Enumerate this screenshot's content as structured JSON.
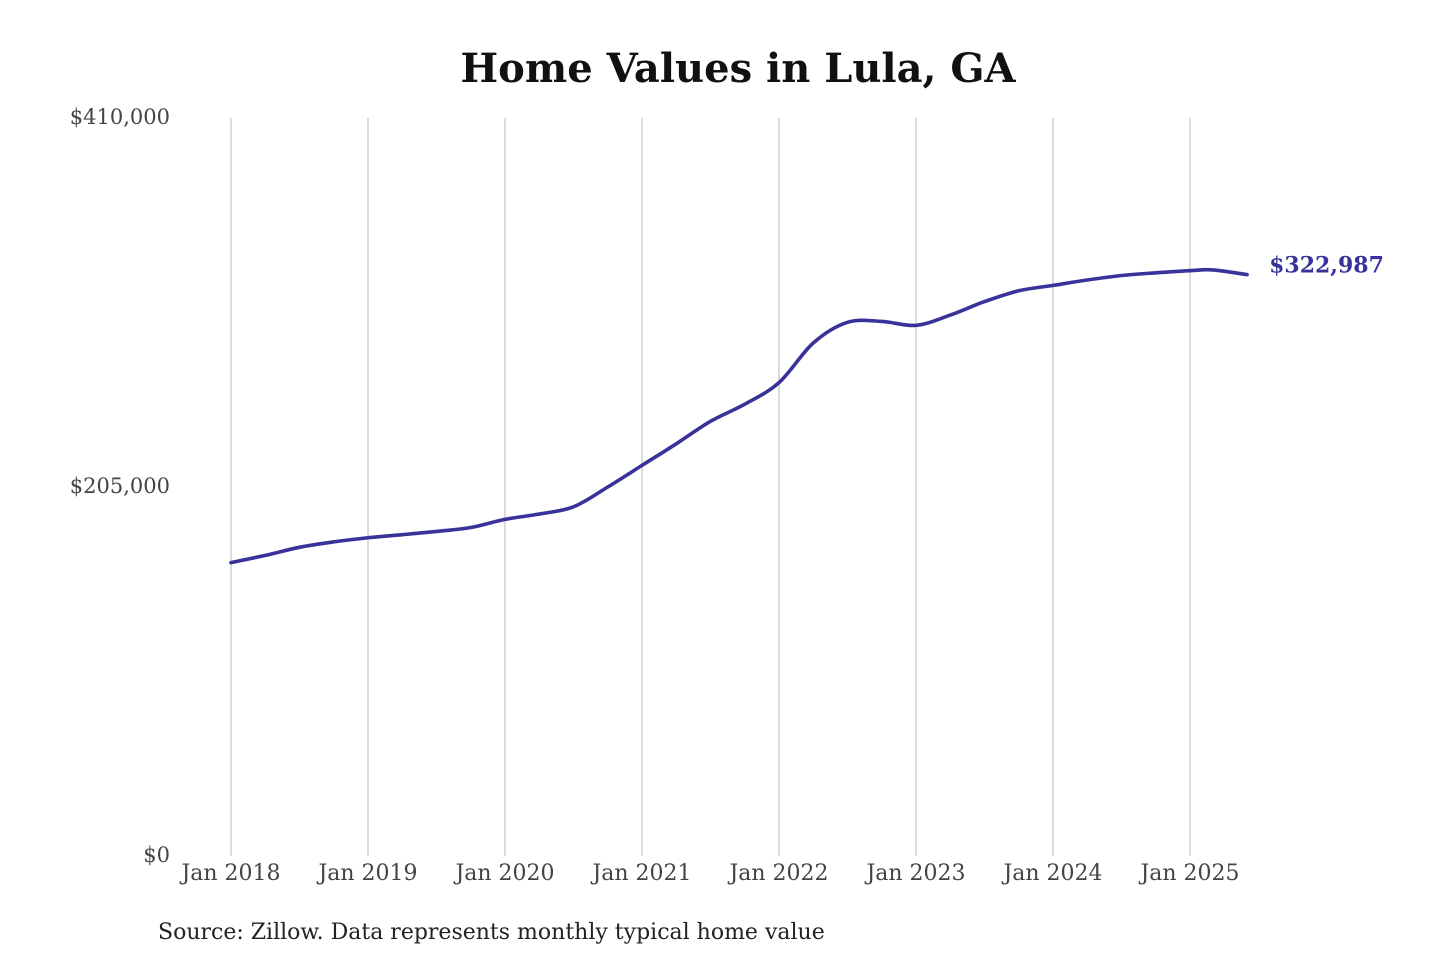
{
  "chart_data": {
    "type": "line",
    "title": "Home Values in Lula, GA",
    "xlabel": "",
    "ylabel": "",
    "ylim": [
      0,
      410000
    ],
    "y_ticks": [
      {
        "value": 0,
        "label": "$0"
      },
      {
        "value": 205000,
        "label": "$205,000"
      },
      {
        "value": 410000,
        "label": "$410,000"
      }
    ],
    "x_ticks": [
      {
        "value": 2018.0,
        "label": "Jan 2018"
      },
      {
        "value": 2019.0,
        "label": "Jan 2019"
      },
      {
        "value": 2020.0,
        "label": "Jan 2020"
      },
      {
        "value": 2021.0,
        "label": "Jan 2021"
      },
      {
        "value": 2022.0,
        "label": "Jan 2022"
      },
      {
        "value": 2023.0,
        "label": "Jan 2023"
      },
      {
        "value": 2024.0,
        "label": "Jan 2024"
      },
      {
        "value": 2025.0,
        "label": "Jan 2025"
      }
    ],
    "xlim": [
      2018.0,
      2025.4167
    ],
    "grid": "vertical",
    "series": [
      {
        "color": "#38329a",
        "x": [
          2018.0,
          2018.25,
          2018.5,
          2018.75,
          2019.0,
          2019.25,
          2019.5,
          2019.75,
          2020.0,
          2020.25,
          2020.5,
          2020.75,
          2021.0,
          2021.25,
          2021.5,
          2021.75,
          2022.0,
          2022.25,
          2022.5,
          2022.75,
          2023.0,
          2023.25,
          2023.5,
          2023.75,
          2024.0,
          2024.25,
          2024.5,
          2024.75,
          2025.0,
          2025.1667,
          2025.4167
        ],
        "values": [
          163000,
          167000,
          171500,
          174500,
          176800,
          178500,
          180300,
          182500,
          187000,
          190000,
          194000,
          205000,
          217000,
          229000,
          241500,
          251000,
          263000,
          285000,
          296500,
          297000,
          294800,
          300500,
          308000,
          314000,
          317000,
          320000,
          322500,
          324000,
          325200,
          325600,
          322987
        ]
      }
    ],
    "end_label": "$322,987",
    "note": "Source: Zillow. Data represents monthly typical home value"
  }
}
